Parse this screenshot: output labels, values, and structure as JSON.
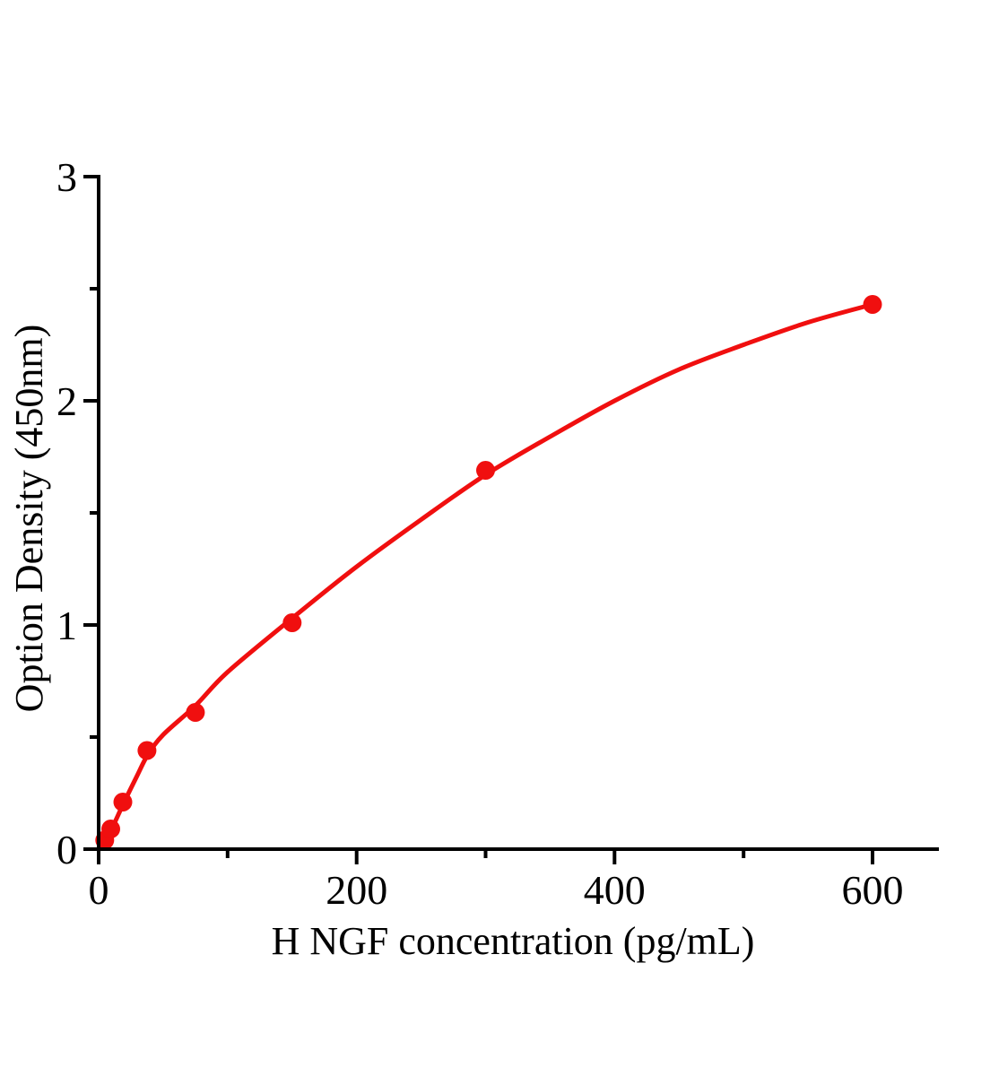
{
  "figure": {
    "background": "#ffffff"
  },
  "chart_data": {
    "type": "scatter",
    "xlabel": "H NGF concentration（pg/mL）",
    "ylabel": "Option Density（450nm）",
    "xlim": [
      0,
      650
    ],
    "ylim": [
      0,
      3
    ],
    "grid": false,
    "legend": "none",
    "axis_color": "#000000",
    "marker_color": "#f00f0f",
    "line_color": "#f00f0f",
    "x_ticks_major": [
      0,
      200,
      400,
      600
    ],
    "x_ticks_minor": [
      100,
      300,
      500
    ],
    "y_ticks_major": [
      0,
      1,
      2,
      3
    ],
    "y_ticks_minor": [
      0.5,
      1.5,
      2.5
    ],
    "points": [
      {
        "x": 4.7,
        "y": 0.04
      },
      {
        "x": 9.4,
        "y": 0.09
      },
      {
        "x": 18.8,
        "y": 0.21
      },
      {
        "x": 37.5,
        "y": 0.44
      },
      {
        "x": 75,
        "y": 0.61
      },
      {
        "x": 150,
        "y": 1.01
      },
      {
        "x": 300,
        "y": 1.69
      },
      {
        "x": 600,
        "y": 2.43
      }
    ],
    "fit_curve": [
      [
        0,
        0.0
      ],
      [
        5,
        0.05
      ],
      [
        10,
        0.09
      ],
      [
        19,
        0.2
      ],
      [
        30,
        0.33
      ],
      [
        38,
        0.42
      ],
      [
        50,
        0.51
      ],
      [
        75,
        0.64
      ],
      [
        100,
        0.79
      ],
      [
        150,
        1.03
      ],
      [
        200,
        1.26
      ],
      [
        250,
        1.47
      ],
      [
        300,
        1.67
      ],
      [
        350,
        1.84
      ],
      [
        400,
        2.0
      ],
      [
        450,
        2.14
      ],
      [
        500,
        2.25
      ],
      [
        550,
        2.35
      ],
      [
        600,
        2.43
      ]
    ]
  }
}
